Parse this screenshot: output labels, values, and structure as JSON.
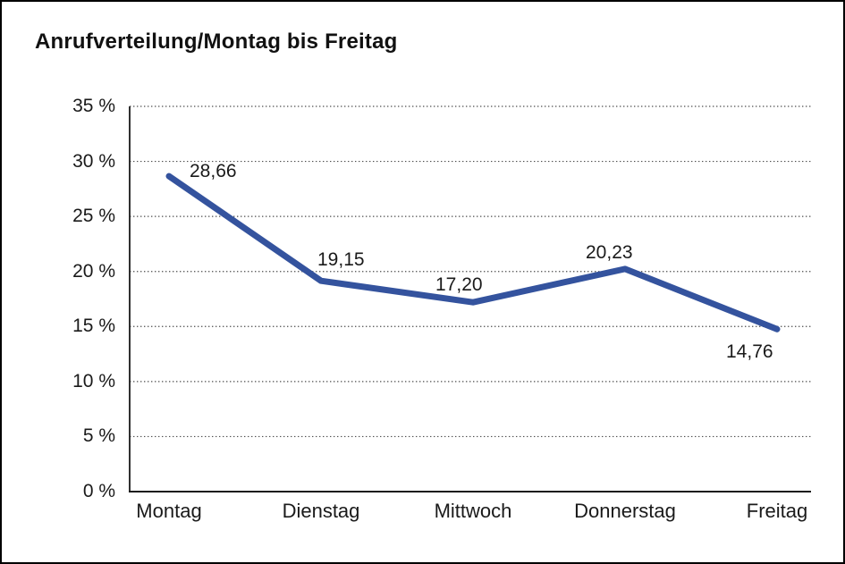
{
  "chart_data": {
    "type": "line",
    "title": "Anrufverteilung/Montag bis Freitag",
    "categories": [
      "Montag",
      "Dienstag",
      "Mittwoch",
      "Donnerstag",
      "Freitag"
    ],
    "values": [
      28.66,
      19.15,
      17.2,
      20.23,
      14.76
    ],
    "value_labels": [
      "28,66",
      "19,15",
      "17,20",
      "20,23",
      "14,76"
    ],
    "xlabel": "",
    "ylabel": "",
    "ylim": [
      0,
      35
    ],
    "y_tick_values": [
      35,
      30,
      25,
      20,
      15,
      10,
      5,
      0
    ],
    "y_tick_labels": [
      "35 %",
      "30 %",
      "25 %",
      "20 %",
      "15 %",
      "10 %",
      "5 %",
      "0 %"
    ],
    "grid": "horizontal-dotted",
    "legend": "none",
    "line_color": "#34539E",
    "axis_color": "#1A1A1A",
    "grid_color": "#4D4D4D",
    "text_color": "#1A1A1A",
    "background": "#FFFFFF",
    "border_color": "#000000"
  }
}
